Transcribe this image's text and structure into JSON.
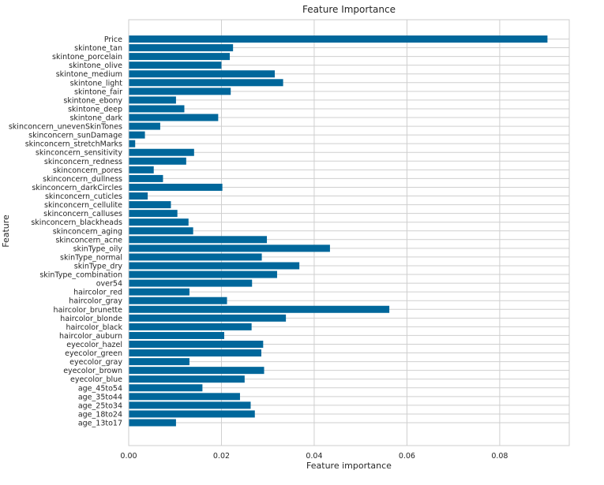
{
  "chart_data": {
    "type": "bar",
    "orientation": "horizontal",
    "title": "Feature Importance",
    "xlabel": "Feature importance",
    "ylabel": "Feature",
    "xlim": [
      0,
      0.095
    ],
    "xticks": [
      0.0,
      0.02,
      0.04,
      0.06,
      0.08
    ],
    "xtick_labels": [
      "0.00",
      "0.02",
      "0.04",
      "0.06",
      "0.08"
    ],
    "grid": true,
    "bar_color": "#00679b",
    "categories": [
      "Price",
      "skintone_tan",
      "skintone_porcelain",
      "skintone_olive",
      "skintone_medium",
      "skintone_light",
      "skintone_fair",
      "skintone_ebony",
      "skintone_deep",
      "skintone_dark",
      "skinconcern_unevenSkinTones",
      "skinconcern_sunDamage",
      "skinconcern_stretchMarks",
      "skinconcern_sensitivity",
      "skinconcern_redness",
      "skinconcern_pores",
      "skinconcern_dullness",
      "skinconcern_darkCircles",
      "skinconcern_cuticles",
      "skinconcern_cellulite",
      "skinconcern_calluses",
      "skinconcern_blackheads",
      "skinconcern_aging",
      "skinconcern_acne",
      "skinType_oily",
      "skinType_normal",
      "skinType_dry",
      "skinType_combination",
      "over54",
      "haircolor_red",
      "haircolor_gray",
      "haircolor_brunette",
      "haircolor_blonde",
      "haircolor_black",
      "haircolor_auburn",
      "eyecolor_hazel",
      "eyecolor_green",
      "eyecolor_gray",
      "eyecolor_brown",
      "eyecolor_blue",
      "age_45to54",
      "age_35to44",
      "age_25to34",
      "age_18to24",
      "age_13to17"
    ],
    "values": [
      0.0903,
      0.0225,
      0.0218,
      0.02,
      0.0315,
      0.0333,
      0.022,
      0.0102,
      0.012,
      0.0193,
      0.0068,
      0.0035,
      0.0014,
      0.0141,
      0.0124,
      0.0054,
      0.0074,
      0.0202,
      0.0041,
      0.0091,
      0.0105,
      0.0129,
      0.0139,
      0.0298,
      0.0434,
      0.0287,
      0.0368,
      0.032,
      0.0266,
      0.0131,
      0.0212,
      0.0562,
      0.0339,
      0.0265,
      0.0206,
      0.029,
      0.0286,
      0.0131,
      0.0292,
      0.025,
      0.0159,
      0.024,
      0.0263,
      0.0272,
      0.0102
    ]
  }
}
